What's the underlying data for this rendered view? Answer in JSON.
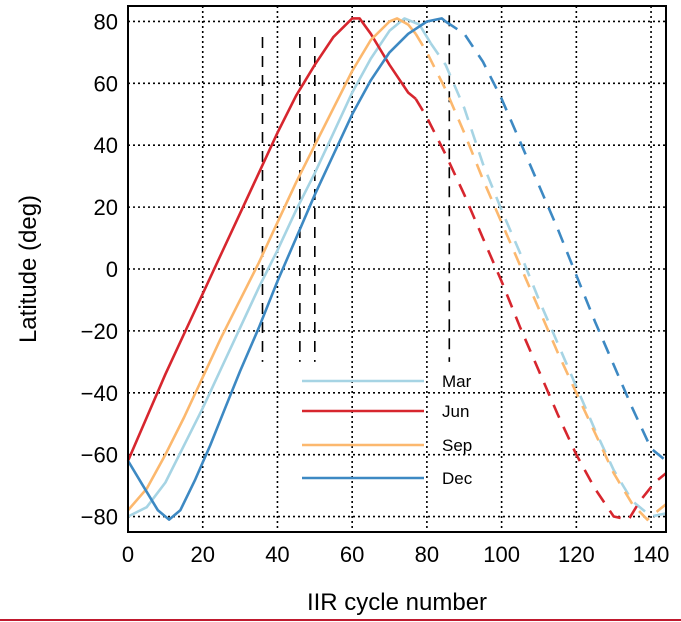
{
  "chart_data": {
    "type": "line",
    "xlabel": "IIR cycle number",
    "ylabel": "Latitude (deg)",
    "xlim": [
      0,
      144
    ],
    "ylim": [
      -85,
      85
    ],
    "x_ticks": [
      0,
      20,
      40,
      60,
      80,
      100,
      120,
      140
    ],
    "y_ticks": [
      -80,
      -60,
      -40,
      -20,
      0,
      20,
      40,
      60,
      80
    ],
    "grid": true,
    "legend_position": "lower-center",
    "marker_lines": [
      {
        "x": 36,
        "y_range": [
          -30,
          75
        ]
      },
      {
        "x": 46,
        "y_range": [
          -30,
          75
        ]
      },
      {
        "x": 50,
        "y_range": [
          -30,
          75
        ]
      },
      {
        "x": 86,
        "y_range": [
          -30,
          82
        ]
      }
    ],
    "series": [
      {
        "name": "Mar",
        "color": "#a6d4e4",
        "solid": [
          [
            0,
            -80
          ],
          [
            5,
            -77
          ],
          [
            10,
            -69
          ],
          [
            15,
            -57
          ],
          [
            20,
            -45
          ],
          [
            25,
            -32
          ],
          [
            30,
            -19
          ],
          [
            35,
            -6
          ],
          [
            40,
            6
          ],
          [
            45,
            19
          ],
          [
            50,
            31
          ],
          [
            55,
            44
          ],
          [
            60,
            57
          ],
          [
            65,
            68
          ],
          [
            70,
            77
          ],
          [
            74,
            81
          ],
          [
            78,
            79
          ],
          [
            80,
            75
          ],
          [
            81,
            73
          ]
        ],
        "dashed": [
          [
            81,
            73
          ],
          [
            85,
            66
          ],
          [
            90,
            52
          ],
          [
            95,
            34
          ],
          [
            100,
            19
          ],
          [
            105,
            5
          ],
          [
            110,
            -10
          ],
          [
            115,
            -24
          ],
          [
            120,
            -38
          ],
          [
            125,
            -52
          ],
          [
            130,
            -65
          ],
          [
            135,
            -75
          ],
          [
            140,
            -80
          ],
          [
            144,
            -79
          ]
        ]
      },
      {
        "name": "Jun",
        "color": "#d7262e",
        "solid": [
          [
            0,
            -62
          ],
          [
            5,
            -48
          ],
          [
            10,
            -34
          ],
          [
            15,
            -21
          ],
          [
            20,
            -8
          ],
          [
            25,
            5
          ],
          [
            30,
            18
          ],
          [
            35,
            31
          ],
          [
            40,
            44
          ],
          [
            45,
            56
          ],
          [
            50,
            66
          ],
          [
            55,
            75
          ],
          [
            60,
            81
          ],
          [
            62,
            81
          ],
          [
            65,
            76
          ],
          [
            70,
            66
          ],
          [
            75,
            57
          ],
          [
            77,
            55
          ]
        ],
        "dashed": [
          [
            77,
            55
          ],
          [
            80,
            49
          ],
          [
            85,
            37
          ],
          [
            90,
            24
          ],
          [
            95,
            10
          ],
          [
            100,
            -4
          ],
          [
            105,
            -19
          ],
          [
            110,
            -33
          ],
          [
            115,
            -47
          ],
          [
            120,
            -60
          ],
          [
            125,
            -71
          ],
          [
            130,
            -80
          ],
          [
            134,
            -81
          ],
          [
            137,
            -75
          ],
          [
            141,
            -69
          ],
          [
            144,
            -66
          ]
        ]
      },
      {
        "name": "Sep",
        "color": "#fcb86e",
        "solid": [
          [
            0,
            -78
          ],
          [
            5,
            -71
          ],
          [
            10,
            -60
          ],
          [
            15,
            -48
          ],
          [
            20,
            -35
          ],
          [
            25,
            -22
          ],
          [
            30,
            -10
          ],
          [
            35,
            2
          ],
          [
            40,
            15
          ],
          [
            45,
            28
          ],
          [
            50,
            40
          ],
          [
            55,
            52
          ],
          [
            60,
            64
          ],
          [
            65,
            74
          ],
          [
            70,
            80
          ],
          [
            72,
            81
          ],
          [
            75,
            79
          ],
          [
            77,
            76
          ]
        ],
        "dashed": [
          [
            77,
            76
          ],
          [
            80,
            70
          ],
          [
            85,
            58
          ],
          [
            90,
            44
          ],
          [
            95,
            29
          ],
          [
            100,
            15
          ],
          [
            105,
            1
          ],
          [
            110,
            -13
          ],
          [
            115,
            -27
          ],
          [
            120,
            -40
          ],
          [
            125,
            -53
          ],
          [
            130,
            -66
          ],
          [
            135,
            -76
          ],
          [
            139,
            -81
          ],
          [
            142,
            -78
          ],
          [
            144,
            -76
          ]
        ]
      },
      {
        "name": "Dec",
        "color": "#3d89c3",
        "solid": [
          [
            0,
            -62
          ],
          [
            4,
            -70
          ],
          [
            8,
            -78
          ],
          [
            11,
            -81
          ],
          [
            14,
            -78
          ],
          [
            18,
            -68
          ],
          [
            22,
            -57
          ],
          [
            26,
            -45
          ],
          [
            30,
            -33
          ],
          [
            35,
            -19
          ],
          [
            40,
            -4
          ],
          [
            45,
            10
          ],
          [
            50,
            24
          ],
          [
            55,
            37
          ],
          [
            60,
            50
          ],
          [
            65,
            61
          ],
          [
            70,
            70
          ],
          [
            75,
            76
          ],
          [
            80,
            80
          ],
          [
            84,
            81
          ],
          [
            85,
            80
          ]
        ],
        "dashed": [
          [
            85,
            80
          ],
          [
            90,
            76
          ],
          [
            95,
            67
          ],
          [
            100,
            55
          ],
          [
            105,
            41
          ],
          [
            110,
            27
          ],
          [
            115,
            13
          ],
          [
            120,
            -2
          ],
          [
            125,
            -17
          ],
          [
            130,
            -31
          ],
          [
            135,
            -45
          ],
          [
            140,
            -58
          ],
          [
            144,
            -62
          ]
        ]
      }
    ]
  }
}
